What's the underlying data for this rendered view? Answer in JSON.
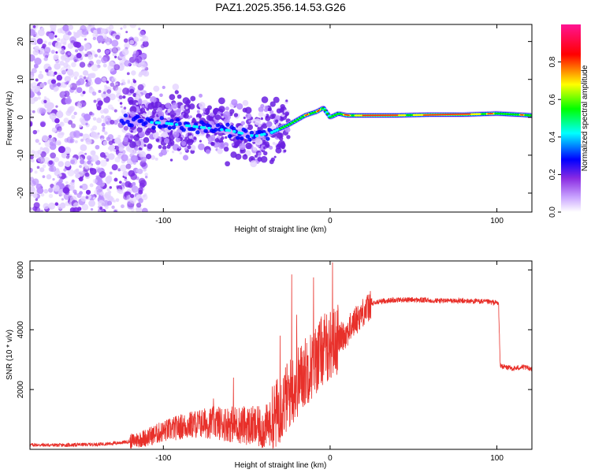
{
  "title": "PAZ1.2025.356.14.53.G26",
  "chart_data": [
    {
      "type": "heatmap",
      "xlabel": "Height of straight line (km)",
      "ylabel": "Frequency (Hz)",
      "xlim": [
        -180,
        121
      ],
      "ylim": [
        -25,
        24.5
      ],
      "xticks": [
        -100,
        0,
        100
      ],
      "yticks": [
        -20,
        -10,
        0,
        10,
        20
      ],
      "colorbar": {
        "label": "Normalized spectral amplitude",
        "range": [
          0,
          1
        ],
        "ticks": [
          "0.0",
          "0.2",
          "0.4",
          "0.6",
          "0.8"
        ],
        "colors": [
          "#ffffff",
          "#8a2be2",
          "#0000ff",
          "#00ffff",
          "#00ff00",
          "#ffff00",
          "#ff0000",
          "#ff1493"
        ]
      },
      "ridge": {
        "description_points_x": [
          -122,
          -100,
          -80,
          -60,
          -45,
          -35,
          -25,
          -15,
          -8,
          -4,
          0,
          5,
          10,
          20,
          40,
          60,
          80,
          100,
          121
        ],
        "description_points_y": [
          -1,
          -1.5,
          -2.5,
          -3.5,
          -5,
          -4,
          -2,
          0.5,
          1.5,
          2.5,
          0,
          1,
          0.5,
          0.5,
          0.5,
          0.7,
          0.7,
          1,
          0.5
        ]
      }
    },
    {
      "type": "line",
      "xlabel": "Height of straight line (km)",
      "ylabel": "SNR (10 * v/v)",
      "xlim": [
        -180,
        121
      ],
      "ylim": [
        0,
        6300
      ],
      "xticks": [
        -100,
        0,
        100
      ],
      "yticks": [
        2000,
        4000,
        6000
      ],
      "color": "#e8302a",
      "series": [
        {
          "name": "SNR",
          "x": [
            -180,
            -160,
            -140,
            -130,
            -120,
            -110,
            -100,
            -90,
            -80,
            -70,
            -60,
            -50,
            -40,
            -35,
            -30,
            -25,
            -20,
            -15,
            -10,
            -5,
            0,
            5,
            10,
            15,
            20,
            25,
            30,
            40,
            50,
            60,
            70,
            80,
            90,
            100,
            101,
            102,
            105,
            110,
            115,
            121
          ],
          "y": [
            150,
            140,
            170,
            200,
            260,
            400,
            600,
            750,
            850,
            900,
            850,
            800,
            700,
            900,
            1400,
            1800,
            2200,
            2600,
            2900,
            3300,
            3500,
            3700,
            3900,
            4300,
            4600,
            4850,
            4950,
            5000,
            5000,
            4980,
            4970,
            4960,
            4950,
            4900,
            4850,
            2800,
            2750,
            2700,
            2750,
            2700
          ]
        }
      ],
      "spikes": [
        {
          "x": -70,
          "y": 1700
        },
        {
          "x": -58,
          "y": 2400
        },
        {
          "x": -30,
          "y": 3800
        },
        {
          "x": -23,
          "y": 5850
        },
        {
          "x": -20,
          "y": 4500
        },
        {
          "x": -10,
          "y": 5750
        },
        {
          "x": 1.5,
          "y": 6250
        }
      ]
    }
  ]
}
